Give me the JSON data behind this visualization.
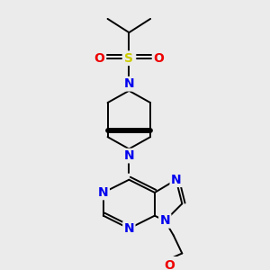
{
  "bg_color": "#ebebeb",
  "atom_colors": {
    "C": "#000000",
    "N": "#0000ee",
    "O": "#ee0000",
    "S": "#cccc00"
  },
  "bond_color": "#000000",
  "lw": 1.4,
  "fs": 8.5
}
